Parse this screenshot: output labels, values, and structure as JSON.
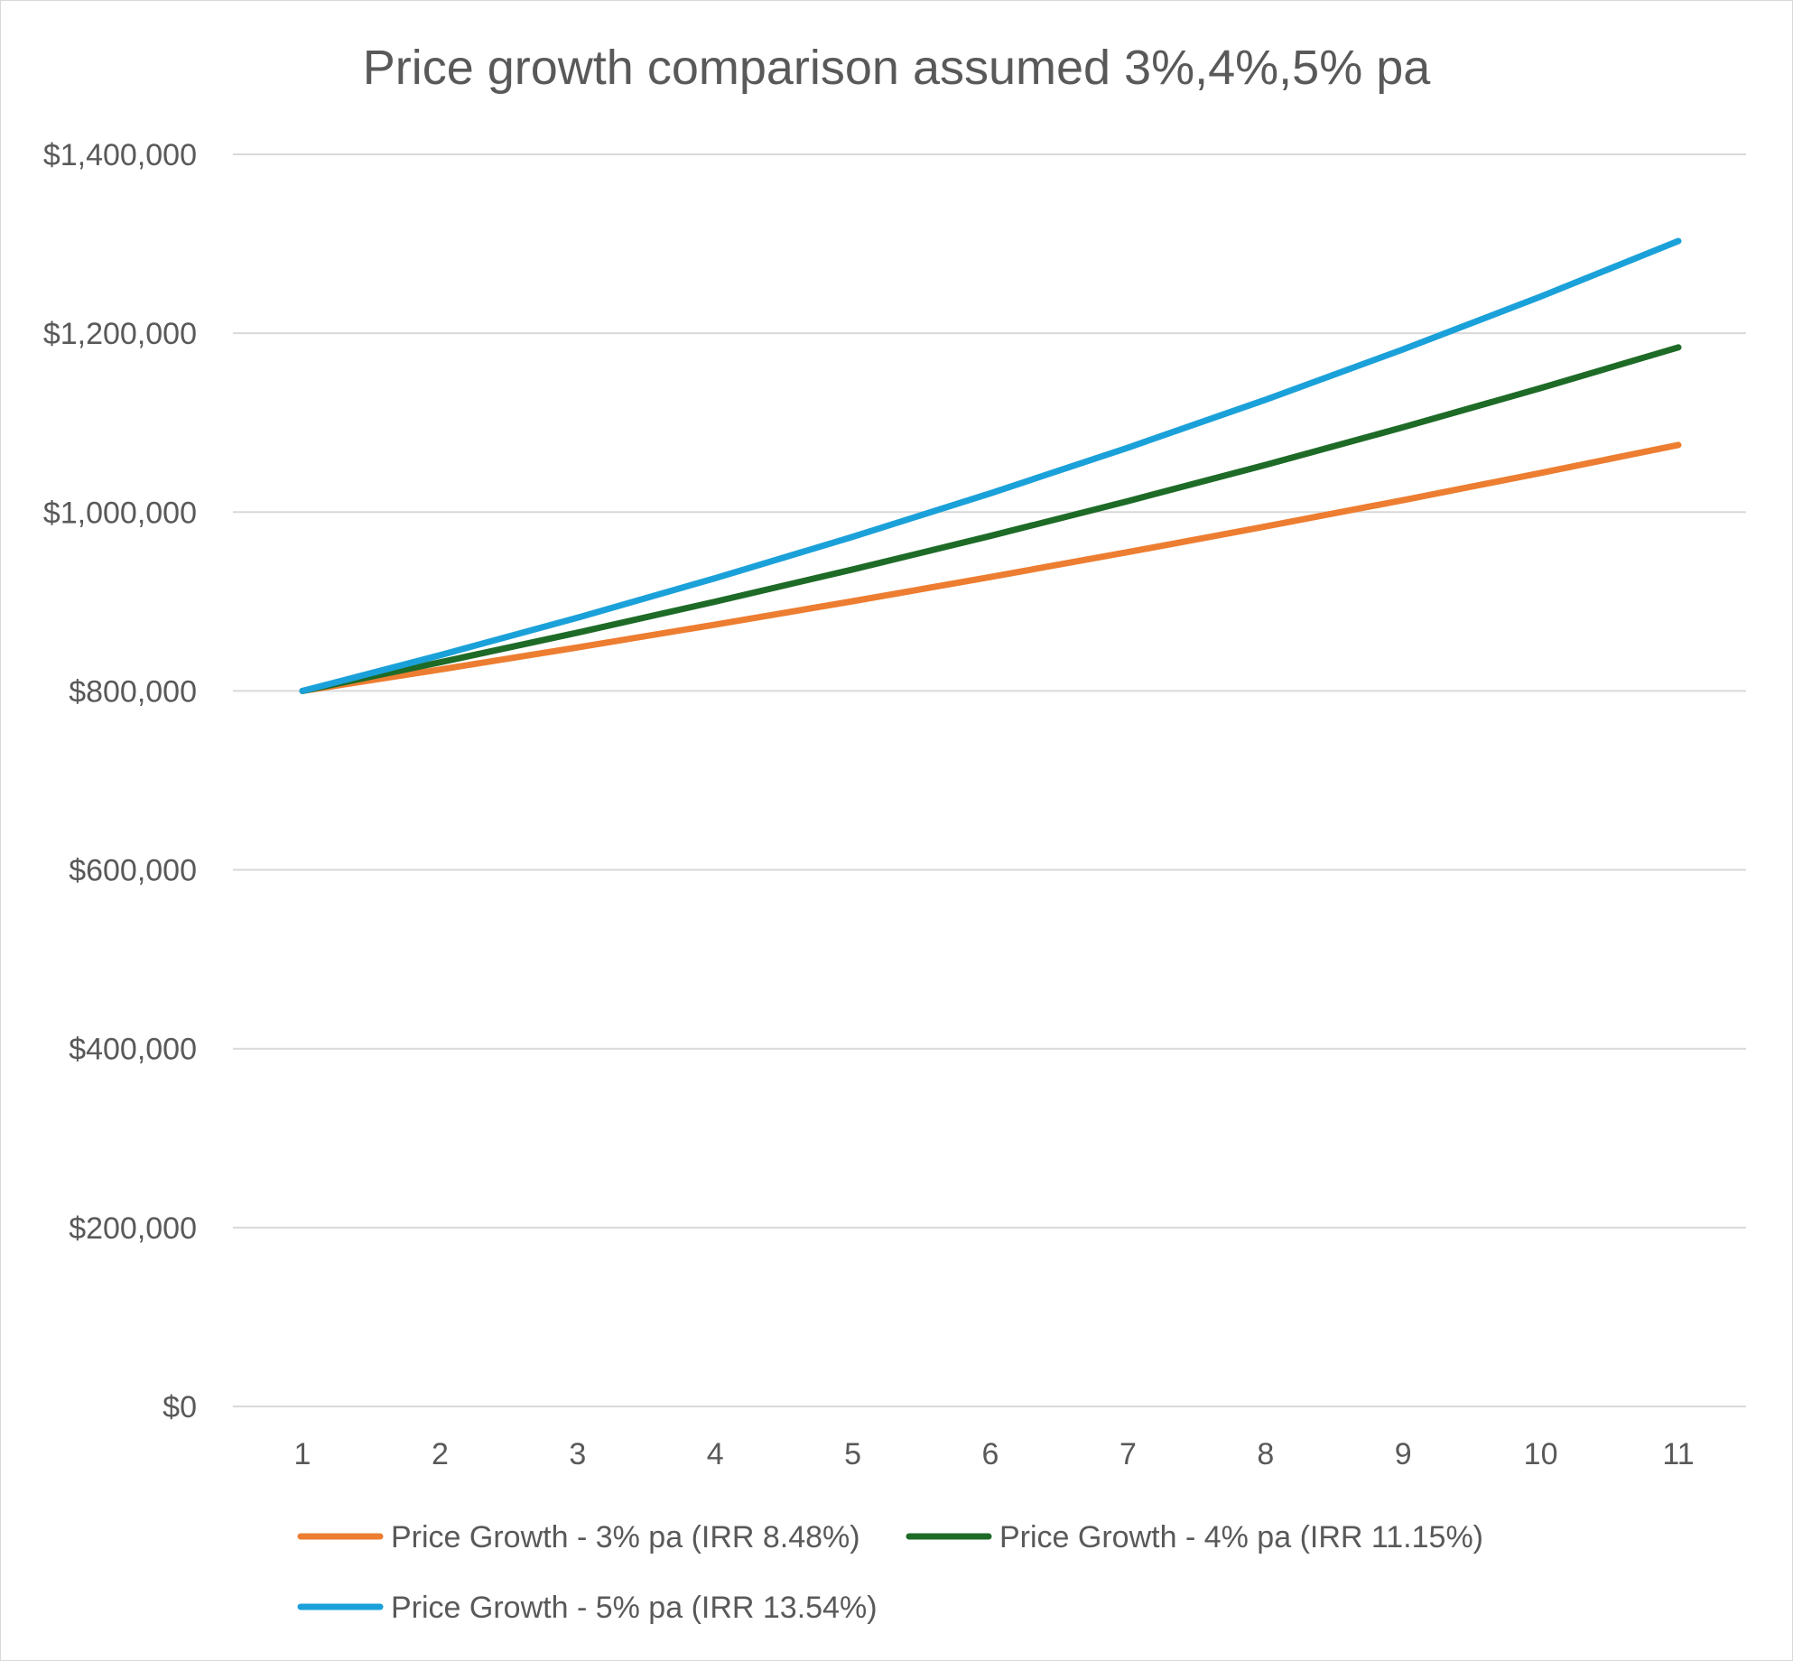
{
  "chart_data": {
    "type": "line",
    "title": "Price growth comparison assumed 3%,4%,5% pa",
    "xlabel": "",
    "ylabel": "",
    "x": [
      1,
      2,
      3,
      4,
      5,
      6,
      7,
      8,
      9,
      10,
      11
    ],
    "x_tick_labels": [
      "1",
      "2",
      "3",
      "4",
      "5",
      "6",
      "7",
      "8",
      "9",
      "10",
      "11"
    ],
    "ylim": [
      0,
      1400000
    ],
    "y_ticks": [
      0,
      200000,
      400000,
      600000,
      800000,
      1000000,
      1200000,
      1400000
    ],
    "y_tick_labels": [
      "$0",
      "$200,000",
      "$400,000",
      "$600,000",
      "$800,000",
      "$1,000,000",
      "$1,200,000",
      "$1,400,000"
    ],
    "grid": true,
    "legend_position": "bottom",
    "series": [
      {
        "name": "Price Growth - 3% pa (IRR 8.48%)",
        "color": "#ED7D31",
        "values": [
          800000,
          824000,
          848720,
          874182,
          900407,
          927419,
          955242,
          983899,
          1013416,
          1043819,
          1075133
        ]
      },
      {
        "name": "Price Growth - 4% pa (IRR 11.15%)",
        "color": "#1E6B27",
        "values": [
          800000,
          832000,
          865280,
          899891,
          935887,
          973322,
          1012255,
          1052745,
          1094855,
          1138649,
          1184195
        ]
      },
      {
        "name": "Price Growth - 5% pa (IRR 13.54%)",
        "color": "#1BA1D9",
        "values": [
          800000,
          840000,
          882000,
          926100,
          972405,
          1021025,
          1072077,
          1125681,
          1181965,
          1241063,
          1303116
        ]
      }
    ]
  }
}
